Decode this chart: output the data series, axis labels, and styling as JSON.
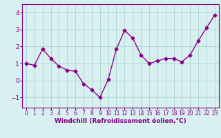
{
  "x": [
    0,
    1,
    2,
    3,
    4,
    5,
    6,
    7,
    8,
    9,
    10,
    11,
    12,
    13,
    14,
    15,
    16,
    17,
    18,
    19,
    20,
    21,
    22,
    23
  ],
  "y": [
    1.0,
    0.9,
    1.85,
    1.3,
    0.85,
    0.6,
    0.55,
    -0.2,
    -0.55,
    -1.0,
    0.05,
    1.85,
    2.95,
    2.5,
    1.5,
    1.0,
    1.15,
    1.3,
    1.3,
    1.1,
    1.5,
    2.35,
    3.1,
    3.85
  ],
  "line_color": "#8B008B",
  "marker": "D",
  "marker_size": 2.5,
  "line_width": 1.0,
  "bg_color": "#d8f0f0",
  "grid_color": "#b0d8d8",
  "xlabel": "Windchill (Refroidissement éolien,°C)",
  "xlim": [
    -0.5,
    23.5
  ],
  "ylim": [
    -1.6,
    4.5
  ],
  "yticks": [
    -1,
    0,
    1,
    2,
    3,
    4
  ],
  "xticks": [
    0,
    1,
    2,
    3,
    4,
    5,
    6,
    7,
    8,
    9,
    10,
    11,
    12,
    13,
    14,
    15,
    16,
    17,
    18,
    19,
    20,
    21,
    22,
    23
  ],
  "tick_color": "#800080",
  "label_color": "#800080",
  "xlabel_fontsize": 6.5,
  "tick_fontsize": 5.5,
  "ytick_fontsize": 6.5
}
